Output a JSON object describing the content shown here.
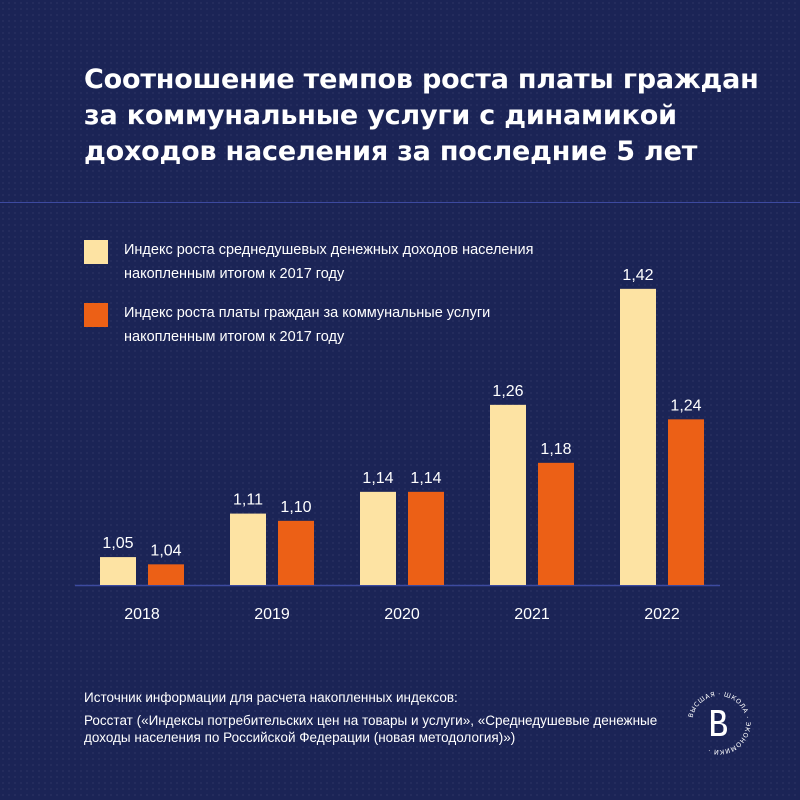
{
  "header": {
    "title": "Соотношение темпов роста платы граждан\nза коммунальные услуги с динамикой\nдоходов населения за последние 5 лет"
  },
  "colors": {
    "background": "#1b2456",
    "income": "#fde3a3",
    "utilities": "#ec6016",
    "axis": "#3d4aa0"
  },
  "chart_data": {
    "type": "bar",
    "title": "Соотношение темпов роста платы граждан за коммунальные услуги с динамикой доходов населения за последние 5 лет",
    "categories": [
      "2018",
      "2019",
      "2020",
      "2021",
      "2022"
    ],
    "series": [
      {
        "name": "Индекс роста среднедушевых денежных доходов населения накопленным итогом к 2017 году",
        "color": "#fde3a3",
        "values": [
          1.05,
          1.11,
          1.14,
          1.26,
          1.42
        ],
        "labels": [
          "1,05",
          "1,11",
          "1,14",
          "1,26",
          "1,42"
        ]
      },
      {
        "name": "Индекс роста платы граждан за коммунальные услуги накопленным итогом к 2017 году",
        "color": "#ec6016",
        "values": [
          1.04,
          1.1,
          1.14,
          1.18,
          1.24
        ],
        "labels": [
          "1,04",
          "1,10",
          "1,14",
          "1,18",
          "1,24"
        ]
      }
    ],
    "xlabel": "",
    "ylabel": "",
    "legend": "top-left",
    "grid": false
  },
  "source": {
    "heading": "Источник информации для расчета накопленных индексов:",
    "text": "Росстат («Индексы потребительских цен на товары и услуги», «Среднедушевые денежные доходы населения по Российской Федерации (новая методология)»)"
  },
  "logo": {
    "icon": "hse-logo",
    "ring_text": "ВЫСШАЯ · ШКОЛА · ЭКОНОМИКИ ·"
  }
}
